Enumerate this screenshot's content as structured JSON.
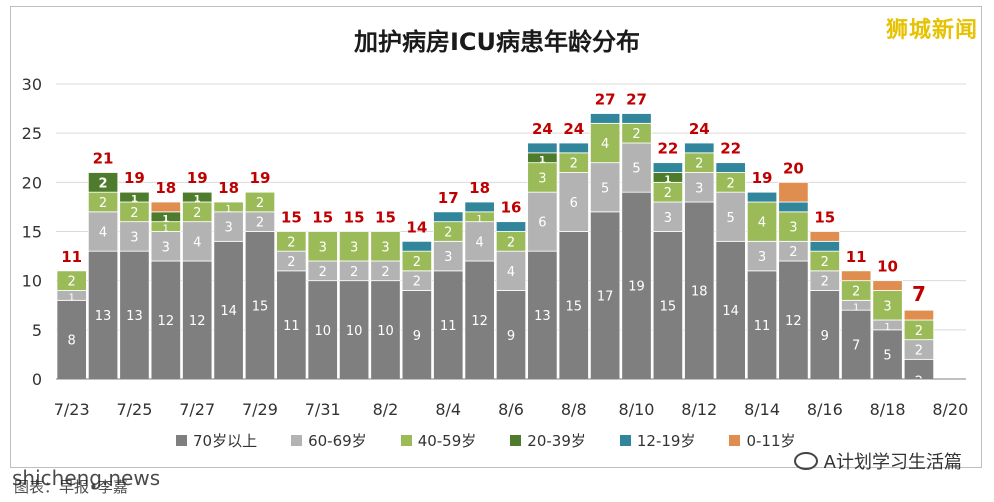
{
  "watermark": "狮城新闻",
  "site_mark": "shicheng.news",
  "source": "图表：早报•李嘉",
  "wechat": "A计划学习生活篇",
  "chart_data": {
    "type": "bar",
    "stacked": true,
    "title": "加护病房ICU病患年龄分布",
    "ylim": [
      0,
      30
    ],
    "yticks": [
      0,
      5,
      10,
      15,
      20,
      25,
      30
    ],
    "grid": true,
    "legend_position": "bottom",
    "categories": [
      "7/23",
      "7/24",
      "7/25",
      "7/26",
      "7/27",
      "7/28",
      "7/29",
      "7/30",
      "7/31",
      "8/1",
      "8/2",
      "8/3",
      "8/4",
      "8/5",
      "8/6",
      "8/7",
      "8/8",
      "8/9",
      "8/10",
      "8/11",
      "8/12",
      "8/13",
      "8/14",
      "8/15",
      "8/16",
      "8/17",
      "8/18",
      "8/19",
      "8/20"
    ],
    "x_tick_labels": [
      "7/23",
      "",
      "7/25",
      "",
      "7/27",
      "",
      "7/29",
      "",
      "7/31",
      "",
      "8/2",
      "",
      "8/4",
      "",
      "8/6",
      "",
      "8/8",
      "",
      "8/10",
      "",
      "8/12",
      "",
      "8/14",
      "",
      "8/16",
      "",
      "8/18",
      "",
      "8/20"
    ],
    "totals": [
      "11",
      "21",
      "19",
      "18",
      "19",
      "18",
      "19",
      "15",
      "15",
      "15",
      "15",
      "14",
      "17",
      "18",
      "16",
      "24",
      "24",
      "27",
      "27",
      "22",
      "24",
      "22",
      "19",
      "20",
      "15",
      "11",
      "10",
      "7",
      ""
    ],
    "series": [
      {
        "name": "70岁以上",
        "color": "#7f7f7f",
        "values": [
          8,
          13,
          13,
          12,
          12,
          14,
          15,
          11,
          10,
          10,
          10,
          9,
          11,
          12,
          9,
          13,
          15,
          17,
          19,
          15,
          18,
          14,
          11,
          12,
          9,
          7,
          5,
          2,
          0
        ]
      },
      {
        "name": "60-69岁",
        "color": "#b3b3b3",
        "values": [
          1,
          4,
          3,
          3,
          4,
          3,
          2,
          2,
          2,
          2,
          2,
          2,
          3,
          4,
          4,
          6,
          6,
          5,
          5,
          3,
          3,
          5,
          3,
          2,
          2,
          1,
          1,
          2,
          0
        ]
      },
      {
        "name": "40-59岁",
        "color": "#9bbb59",
        "values": [
          2,
          2,
          2,
          1,
          2,
          1,
          2,
          2,
          3,
          3,
          3,
          2,
          2,
          1,
          2,
          3,
          2,
          4,
          2,
          2,
          2,
          2,
          4,
          3,
          2,
          2,
          3,
          2,
          0
        ]
      },
      {
        "name": "20-39岁",
        "color": "#4f7b2c",
        "values": [
          0,
          2,
          1,
          1,
          1,
          0,
          0,
          0,
          0,
          0,
          0,
          0,
          0,
          0,
          0,
          1,
          0,
          0,
          0,
          1,
          0,
          0,
          0,
          0,
          0,
          0,
          0,
          0,
          0
        ]
      },
      {
        "name": "12-19岁",
        "color": "#31869b",
        "values": [
          0,
          0,
          0,
          0,
          0,
          0,
          0,
          0,
          0,
          0,
          0,
          1,
          1,
          1,
          1,
          1,
          1,
          1,
          1,
          1,
          1,
          1,
          1,
          1,
          1,
          0,
          0,
          0,
          0
        ]
      },
      {
        "name": "0-11岁",
        "color": "#e08e4f",
        "values": [
          0,
          0,
          0,
          1,
          0,
          0,
          0,
          0,
          0,
          0,
          0,
          0,
          0,
          0,
          0,
          0,
          0,
          0,
          0,
          0,
          0,
          0,
          0,
          2,
          1,
          1,
          1,
          1,
          0
        ]
      }
    ]
  }
}
